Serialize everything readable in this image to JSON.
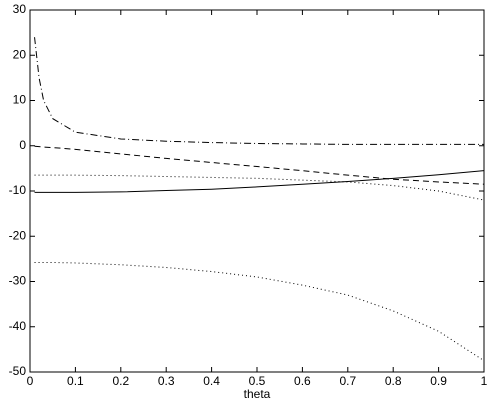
{
  "chart_data": {
    "type": "line",
    "xlabel": "theta",
    "x": [
      0.01,
      0.02,
      0.03,
      0.05,
      0.1,
      0.2,
      0.3,
      0.4,
      0.5,
      0.6,
      0.7,
      0.8,
      0.9,
      1
    ],
    "series": [
      {
        "color": "#000000",
        "style": "dashdot",
        "values": [
          24,
          15,
          10,
          6,
          3,
          1.5,
          1,
          0.7,
          0.5,
          0.4,
          0.3,
          0.3,
          0.3,
          0.3
        ]
      },
      {
        "color": "#000000",
        "style": "dashed",
        "values": [
          -0.1,
          -0.2,
          -0.3,
          -0.4,
          -0.8,
          -1.8,
          -2.8,
          -3.7,
          -4.6,
          -5.5,
          -6.5,
          -7.4,
          -8,
          -8.5
        ]
      },
      {
        "color": "#000000",
        "style": "solid",
        "values": [
          -10.3,
          -10.3,
          -10.3,
          -10.3,
          -10.3,
          -10.2,
          -9.9,
          -9.6,
          -9.1,
          -8.5,
          -7.9,
          -7.2,
          -6.4,
          -5.5
        ]
      },
      {
        "color": "#000000",
        "style": "dotted",
        "values": [
          -6.5,
          -6.5,
          -6.5,
          -6.5,
          -6.5,
          -6.6,
          -6.8,
          -7,
          -7.2,
          -7.6,
          -8,
          -8.8,
          -10,
          -12
        ]
      },
      {
        "color": "#000000",
        "style": "dotted",
        "values": [
          -25.8,
          -25.8,
          -25.8,
          -25.8,
          -25.9,
          -26.3,
          -26.9,
          -27.8,
          -29,
          -30.8,
          -33,
          -36.5,
          -41,
          -47.5
        ]
      }
    ],
    "xlim": [
      0,
      1
    ],
    "xticks": [
      0,
      0.1,
      0.2,
      0.3,
      0.4,
      0.5,
      0.6,
      0.7,
      0.8,
      0.9,
      1
    ],
    "ylim": [
      -50,
      30
    ],
    "yticks": [
      -50,
      -40,
      -30,
      -20,
      -10,
      0,
      10,
      20,
      30
    ],
    "grid": false
  }
}
